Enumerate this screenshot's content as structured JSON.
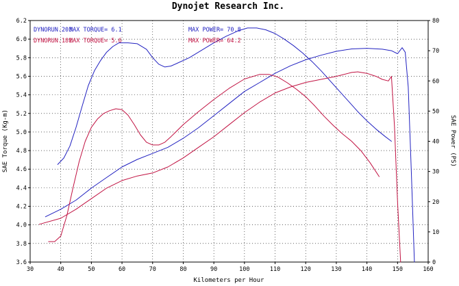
{
  "chart_data": {
    "type": "line",
    "title": "Dynojet  Research  Inc.",
    "xlabel": "Kilometers per Hour",
    "ylabel_left": "SAE Torque (Kg-m)",
    "ylabel_right": "SAE Power (PS)",
    "xlim": [
      30,
      160
    ],
    "ylim_left": [
      3.6,
      6.2
    ],
    "ylim_right": [
      0,
      80
    ],
    "x_ticks": [
      30,
      40,
      50,
      60,
      70,
      80,
      90,
      100,
      110,
      120,
      130,
      140,
      150,
      160
    ],
    "y_left_ticks": [
      3.6,
      3.8,
      4.0,
      4.2,
      4.4,
      4.6,
      4.8,
      5.0,
      5.2,
      5.4,
      5.6,
      5.8,
      6.0,
      6.2
    ],
    "y_right_ticks": [
      0,
      10,
      20,
      30,
      40,
      50,
      60,
      70,
      80
    ],
    "grid": true,
    "legend": [
      {
        "run": "DYNORUN.203",
        "torque": "MAX TORQUE= 6.1",
        "power": "MAX POWER= 70.8",
        "color": "#2020c0"
      },
      {
        "run": "DYNORUN.181",
        "torque": "MAX TORQUE= 5.6",
        "power": "MAX POWER= 64.2",
        "color": "#c01040"
      }
    ],
    "series": [
      {
        "run": "DYNORUN.203",
        "measure": "torque",
        "axis": "left",
        "color": "#2020c0",
        "x": [
          39,
          41,
          43,
          45,
          47,
          49,
          51,
          53,
          55,
          57,
          59,
          62,
          65,
          68,
          70,
          72,
          74,
          76,
          78,
          82,
          86,
          90,
          94,
          98,
          101,
          104,
          107,
          110,
          113,
          116,
          119,
          122,
          125,
          128,
          131,
          134,
          137,
          140,
          143,
          146,
          148
        ],
        "y": [
          4.65,
          4.72,
          4.85,
          5.05,
          5.28,
          5.5,
          5.66,
          5.77,
          5.86,
          5.92,
          5.96,
          5.96,
          5.95,
          5.89,
          5.8,
          5.73,
          5.7,
          5.71,
          5.74,
          5.8,
          5.88,
          5.96,
          6.03,
          6.09,
          6.12,
          6.12,
          6.1,
          6.06,
          6.0,
          5.93,
          5.85,
          5.76,
          5.66,
          5.55,
          5.44,
          5.33,
          5.22,
          5.12,
          5.03,
          4.95,
          4.9
        ]
      },
      {
        "run": "DYNORUN.203",
        "measure": "power",
        "axis": "right",
        "color": "#2020c0",
        "x": [
          35,
          40,
          45,
          50,
          55,
          60,
          65,
          70,
          75,
          80,
          85,
          90,
          95,
          100,
          105,
          110,
          115,
          120,
          125,
          130,
          135,
          140,
          145,
          148,
          150,
          151.5,
          152.5,
          153.5,
          154.5,
          155.5
        ],
        "y": [
          15.0,
          17.5,
          20.5,
          24.5,
          28.0,
          31.5,
          34.0,
          36.0,
          38.0,
          41.0,
          44.5,
          48.5,
          52.5,
          56.5,
          59.5,
          62.5,
          65.0,
          67.0,
          68.5,
          69.8,
          70.6,
          70.8,
          70.5,
          70.0,
          69.0,
          71.0,
          69.5,
          58.0,
          30.0,
          0
        ]
      },
      {
        "run": "DYNORUN.181",
        "measure": "torque",
        "axis": "left",
        "color": "#c01040",
        "x": [
          36,
          38,
          40,
          42,
          44,
          46,
          48,
          50,
          52,
          54,
          56,
          58,
          60,
          62,
          64,
          66,
          68,
          70,
          72,
          74,
          76,
          80,
          85,
          90,
          95,
          100,
          105,
          108,
          111,
          114,
          117,
          120,
          123,
          126,
          129,
          132,
          135,
          138,
          141,
          144
        ],
        "y": [
          3.82,
          3.82,
          3.88,
          4.1,
          4.4,
          4.68,
          4.9,
          5.05,
          5.14,
          5.2,
          5.23,
          5.25,
          5.24,
          5.18,
          5.08,
          4.97,
          4.89,
          4.86,
          4.86,
          4.89,
          4.95,
          5.08,
          5.22,
          5.35,
          5.47,
          5.57,
          5.62,
          5.62,
          5.59,
          5.53,
          5.46,
          5.38,
          5.28,
          5.17,
          5.07,
          4.98,
          4.9,
          4.8,
          4.67,
          4.52
        ]
      },
      {
        "run": "DYNORUN.181",
        "measure": "power",
        "axis": "right",
        "color": "#c01040",
        "x": [
          33,
          40,
          45,
          50,
          55,
          60,
          65,
          70,
          75,
          80,
          85,
          90,
          95,
          100,
          105,
          110,
          115,
          120,
          125,
          130,
          135,
          137,
          140,
          143,
          145,
          147,
          148,
          149,
          150,
          151
        ],
        "y": [
          12.5,
          14.5,
          17.5,
          21.0,
          24.5,
          27.0,
          28.5,
          29.5,
          31.5,
          34.5,
          38.0,
          41.5,
          45.5,
          49.5,
          53.0,
          56.0,
          58.0,
          59.5,
          60.5,
          61.5,
          62.8,
          63.0,
          62.5,
          61.5,
          60.5,
          60.0,
          61.5,
          45.0,
          20.0,
          0
        ]
      }
    ]
  }
}
